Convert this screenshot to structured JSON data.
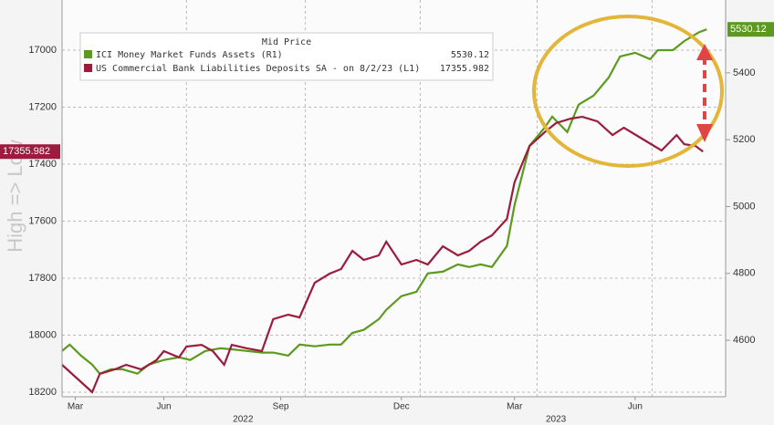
{
  "chart_data": {
    "type": "line",
    "y_inverted": true,
    "ylim": [
      16824,
      18216
    ],
    "yticks": [
      17000,
      17200,
      17400,
      17600,
      17800,
      18000,
      18200
    ],
    "y2lim": [
      4431,
      5618
    ],
    "y2ticks": [
      4600,
      4800,
      5000,
      5200,
      5400
    ],
    "xlim": [
      0,
      17.6
    ],
    "xticks": [
      {
        "value": 0.35,
        "label": "Mar"
      },
      {
        "value": 2.7,
        "label": "Jun"
      },
      {
        "value": 5.8,
        "label": "Sep"
      },
      {
        "value": 9.0,
        "label": "Dec"
      },
      {
        "value": 12.0,
        "label": "Mar"
      },
      {
        "value": 15.2,
        "label": "Jun"
      }
    ],
    "year_labels": [
      {
        "value": 4.8,
        "label": "2022"
      },
      {
        "value": 13.1,
        "label": "2023"
      }
    ],
    "xgrid": [
      3.3,
      6.45,
      9.5,
      12.6,
      15.65
    ],
    "grid": true,
    "ylabel": "High => Low",
    "legend_title": "Mid Price",
    "series": [
      {
        "name": "ICI Money Market Funds Assets (R1)",
        "color": "#5b9a1f",
        "axis": "y2",
        "x": [
          0,
          0.2,
          0.5,
          0.8,
          1.0,
          1.3,
          1.6,
          2.0,
          2.3,
          2.7,
          3.1,
          3.4,
          3.8,
          4.2,
          4.5,
          4.9,
          5.3,
          5.6,
          6.0,
          6.3,
          6.7,
          7.1,
          7.4,
          7.7,
          8.0,
          8.4,
          8.6,
          9.0,
          9.4,
          9.7,
          10.1,
          10.5,
          10.8,
          11.1,
          11.4,
          11.8,
          12.0,
          12.4,
          12.8,
          13.0,
          13.4,
          13.7,
          14.1,
          14.5,
          14.8,
          15.2,
          15.6,
          15.8,
          16.2,
          16.5,
          16.9,
          17.1
        ],
        "values": [
          4568,
          4587,
          4554,
          4527,
          4500,
          4513,
          4513,
          4500,
          4527,
          4541,
          4549,
          4541,
          4568,
          4576,
          4573,
          4568,
          4563,
          4563,
          4554,
          4587,
          4582,
          4587,
          4587,
          4622,
          4631,
          4663,
          4691,
          4732,
          4745,
          4800,
          4805,
          4827,
          4819,
          4827,
          4819,
          4882,
          5004,
          5182,
          5236,
          5269,
          5223,
          5305,
          5332,
          5386,
          5449,
          5460,
          5441,
          5468,
          5468,
          5495,
          5522,
          5530.12
        ]
      },
      {
        "name": "US Commercial Bank Liabilities Deposits SA - on 8/2/23 (L1)",
        "color": "#9b1c3c",
        "x": [
          0.0,
          0.4,
          0.8,
          1.0,
          1.4,
          1.7,
          2.1,
          2.5,
          2.7,
          3.1,
          3.3,
          3.7,
          4.0,
          4.3,
          4.5,
          4.9,
          5.3,
          5.6,
          6.0,
          6.3,
          6.7,
          7.1,
          7.4,
          7.7,
          8.0,
          8.4,
          8.6,
          9.0,
          9.4,
          9.7,
          10.1,
          10.5,
          10.8,
          11.1,
          11.4,
          11.8,
          12.0,
          12.4,
          12.8,
          13.1,
          13.5,
          13.8,
          14.2,
          14.6,
          14.9,
          15.3,
          15.7,
          15.9,
          16.3,
          16.5,
          16.8,
          17.0
        ],
        "values": [
          18104,
          18152,
          18200,
          18136,
          18120,
          18104,
          18120,
          18088,
          18056,
          18078,
          18040,
          18034,
          18056,
          18104,
          18034,
          18046,
          18056,
          17944,
          17928,
          17938,
          17816,
          17784,
          17768,
          17704,
          17736,
          17720,
          17672,
          17752,
          17736,
          17752,
          17688,
          17720,
          17704,
          17672,
          17650,
          17592,
          17464,
          17336,
          17288,
          17256,
          17240,
          17234,
          17250,
          17298,
          17272,
          17304,
          17336,
          17352,
          17298,
          17330,
          17336,
          17355.982
        ]
      }
    ]
  }
}
